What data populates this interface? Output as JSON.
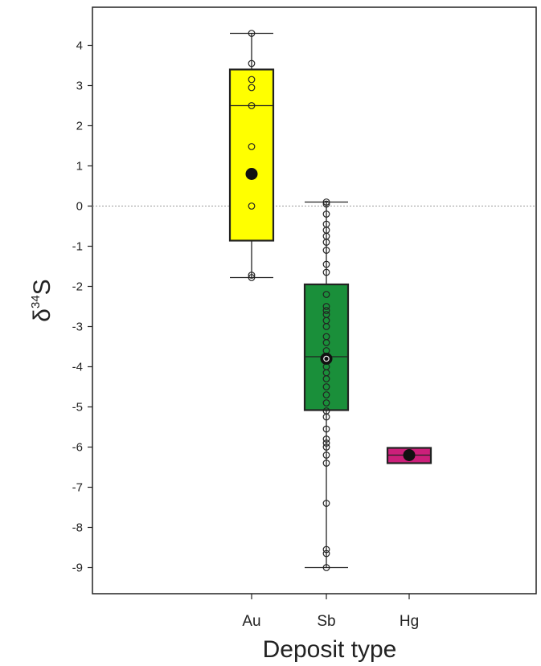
{
  "chart_data": {
    "type": "box",
    "xlabel": "Deposit type",
    "ylabel": {
      "base": "δ",
      "sup": "34",
      "after": "S"
    },
    "ylim": [
      -9.65,
      4.95
    ],
    "yticks": [
      4,
      3,
      2,
      1,
      0,
      -1,
      -2,
      -3,
      -4,
      -5,
      -6,
      -7,
      -8,
      -9
    ],
    "reference_line": {
      "y": 0,
      "style": "dotted"
    },
    "grid": false,
    "legend": "none",
    "categories": [
      "Au",
      "Sb",
      "Hg"
    ],
    "boxes": [
      {
        "category": "Au",
        "color": "#ffff00",
        "whisker_low": -1.78,
        "q1": -0.86,
        "median": 2.5,
        "q3": 3.4,
        "whisker_high": 4.3,
        "mean": 0.8,
        "points": [
          4.3,
          3.55,
          3.15,
          2.95,
          2.5,
          1.48,
          0.0,
          -1.72,
          -1.78
        ]
      },
      {
        "category": "Sb",
        "color": "#1a8f3a",
        "whisker_low": -9.0,
        "q1": -5.08,
        "median": -3.75,
        "q3": -1.95,
        "whisker_high": 0.1,
        "mean": -3.8,
        "points": [
          0.1,
          0.05,
          -0.2,
          -0.45,
          -0.6,
          -0.75,
          -0.9,
          -1.1,
          -1.45,
          -1.65,
          -2.2,
          -2.5,
          -2.6,
          -2.7,
          -2.85,
          -3.0,
          -3.25,
          -3.4,
          -3.6,
          -3.75,
          -3.85,
          -4.0,
          -4.15,
          -4.3,
          -4.5,
          -4.7,
          -4.9,
          -5.1,
          -5.25,
          -5.55,
          -5.8,
          -5.9,
          -6.0,
          -6.2,
          -6.4,
          -7.4,
          -8.55,
          -8.65,
          -9.0
        ]
      },
      {
        "category": "Hg",
        "color": "#cc1f7a",
        "whisker_low": -6.4,
        "q1": -6.4,
        "median": -6.2,
        "q3": -6.02,
        "whisker_high": -6.02,
        "mean": -6.2,
        "points": []
      }
    ]
  }
}
